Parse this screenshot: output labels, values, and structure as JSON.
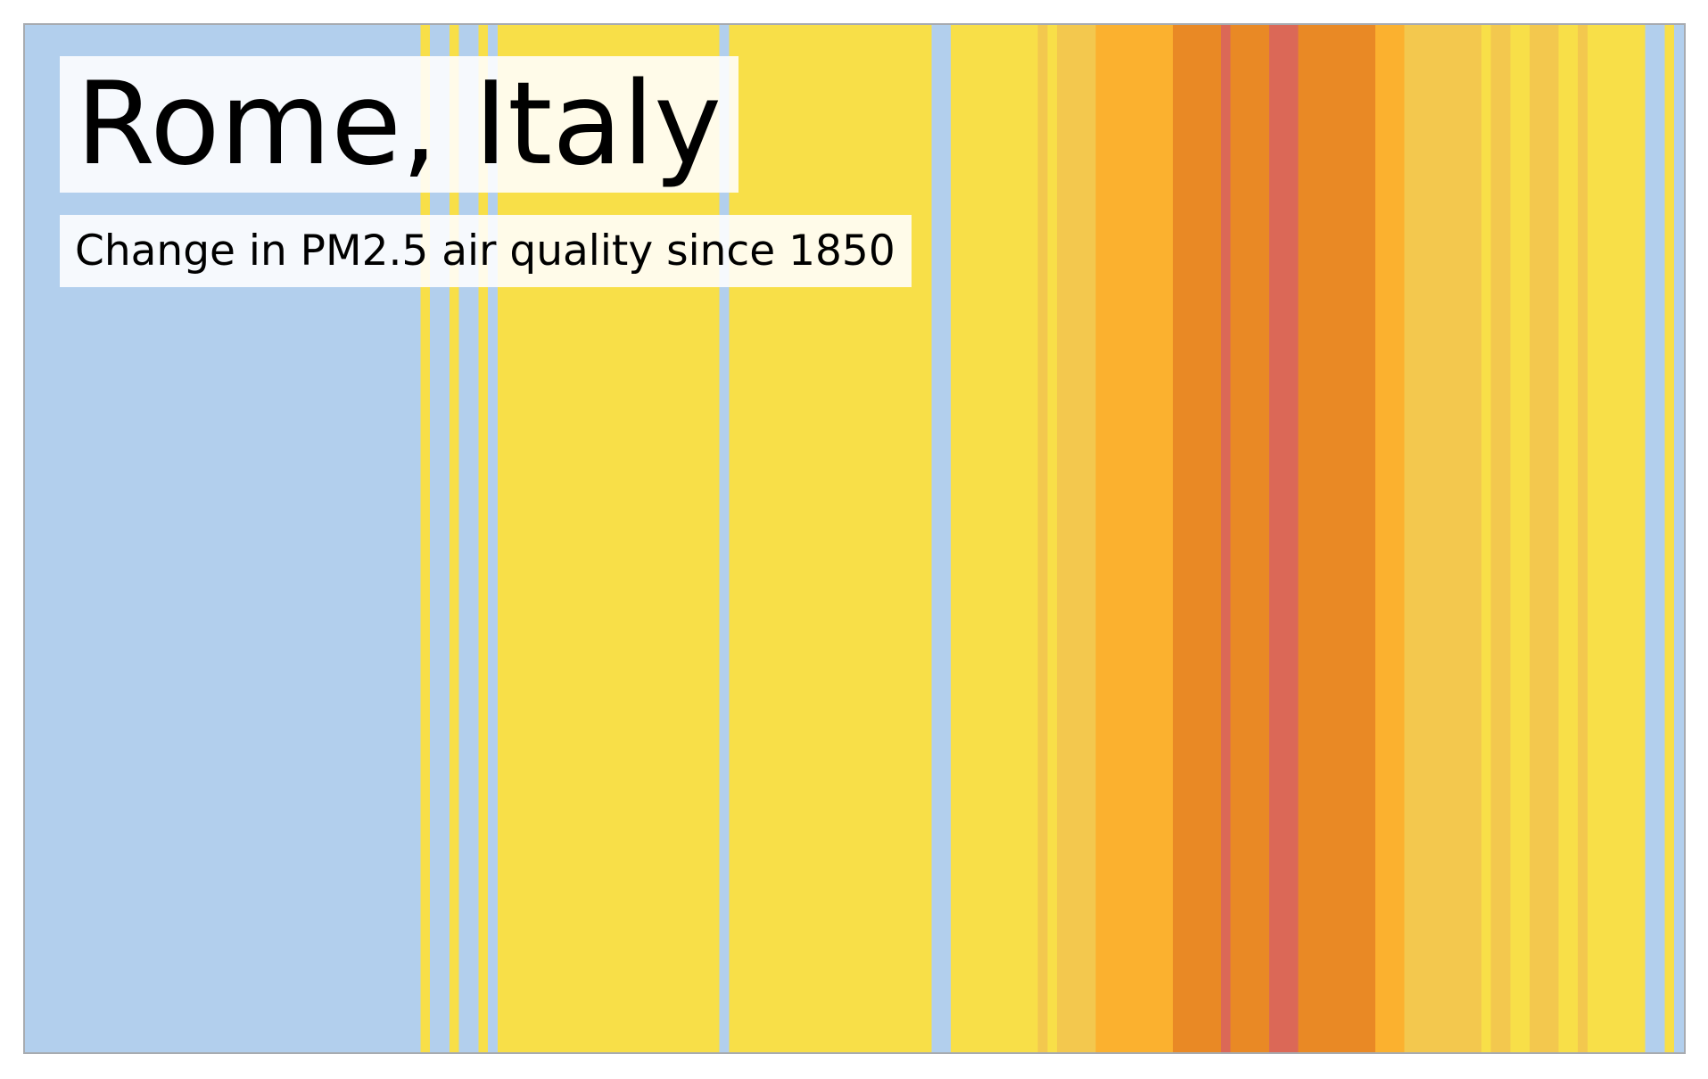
{
  "chart_data": {
    "type": "heatmap",
    "title": "Rome, Italy",
    "subtitle": "Change in PM2.5 air quality since 1850",
    "xlabel": "",
    "ylabel": "",
    "grid": false,
    "legend": "none",
    "start_year": 1850,
    "palette": {
      "blue": "#b2cfed",
      "yellow": "#f8df48",
      "gold": "#f3c84e",
      "orange": "#fbb12f",
      "dark_orange": "#e98925",
      "red": "#db6857"
    },
    "levels": [
      "blue",
      "yellow",
      "gold",
      "orange",
      "dark_orange",
      "red"
    ],
    "stripes": [
      "blue",
      "blue",
      "blue",
      "blue",
      "blue",
      "blue",
      "blue",
      "blue",
      "blue",
      "blue",
      "blue",
      "blue",
      "blue",
      "blue",
      "blue",
      "blue",
      "blue",
      "blue",
      "blue",
      "blue",
      "blue",
      "blue",
      "blue",
      "blue",
      "blue",
      "blue",
      "blue",
      "blue",
      "blue",
      "blue",
      "blue",
      "blue",
      "blue",
      "blue",
      "blue",
      "blue",
      "blue",
      "blue",
      "blue",
      "blue",
      "blue",
      "yellow",
      "blue",
      "blue",
      "yellow",
      "blue",
      "blue",
      "yellow",
      "blue",
      "yellow",
      "yellow",
      "yellow",
      "yellow",
      "yellow",
      "yellow",
      "yellow",
      "yellow",
      "yellow",
      "yellow",
      "yellow",
      "yellow",
      "yellow",
      "yellow",
      "yellow",
      "yellow",
      "yellow",
      "yellow",
      "yellow",
      "yellow",
      "yellow",
      "yellow",
      "yellow",
      "blue",
      "yellow",
      "yellow",
      "yellow",
      "yellow",
      "yellow",
      "yellow",
      "yellow",
      "yellow",
      "yellow",
      "yellow",
      "yellow",
      "yellow",
      "yellow",
      "yellow",
      "yellow",
      "yellow",
      "yellow",
      "yellow",
      "yellow",
      "yellow",
      "yellow",
      "blue",
      "blue",
      "yellow",
      "yellow",
      "yellow",
      "yellow",
      "yellow",
      "yellow",
      "yellow",
      "yellow",
      "yellow",
      "gold",
      "yellow",
      "gold",
      "gold",
      "gold",
      "gold",
      "orange",
      "orange",
      "orange",
      "orange",
      "orange",
      "orange",
      "orange",
      "orange",
      "dark_orange",
      "dark_orange",
      "dark_orange",
      "dark_orange",
      "dark_orange",
      "red",
      "dark_orange",
      "dark_orange",
      "dark_orange",
      "dark_orange",
      "red",
      "red",
      "red",
      "dark_orange",
      "dark_orange",
      "dark_orange",
      "dark_orange",
      "dark_orange",
      "dark_orange",
      "dark_orange",
      "dark_orange",
      "orange",
      "orange",
      "orange",
      "gold",
      "gold",
      "gold",
      "gold",
      "gold",
      "gold",
      "gold",
      "gold",
      "yellow",
      "gold",
      "gold",
      "yellow",
      "yellow",
      "gold",
      "gold",
      "gold",
      "yellow",
      "yellow",
      "gold",
      "yellow",
      "yellow",
      "yellow",
      "yellow",
      "yellow",
      "yellow",
      "blue",
      "blue",
      "yellow",
      "blue"
    ]
  }
}
